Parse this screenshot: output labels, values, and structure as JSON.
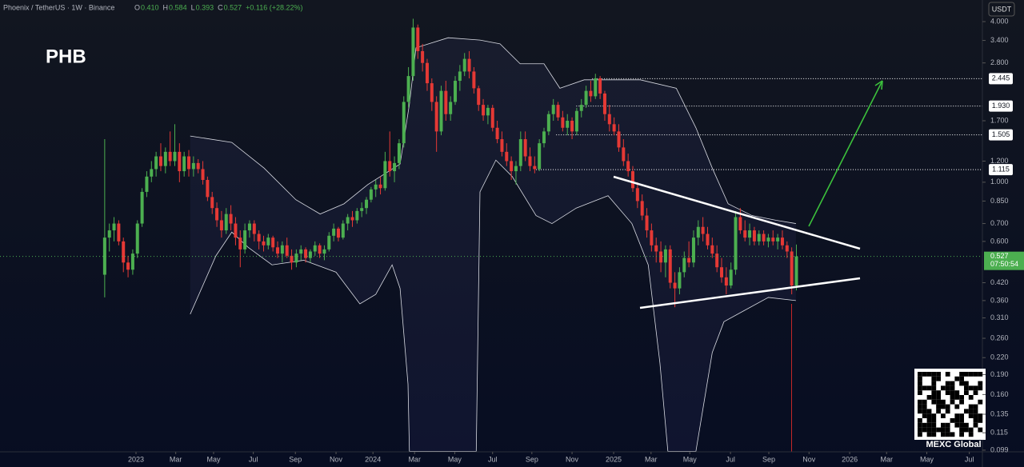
{
  "header": {
    "pair": "Phoenix / TetherUS · 1W · Binance",
    "fields": [
      {
        "key": "O",
        "text": "0.410"
      },
      {
        "key": "H",
        "text": "0.584"
      },
      {
        "key": "L",
        "text": "0.393"
      },
      {
        "key": "C",
        "text": "0.527"
      }
    ],
    "change": "+0.116 (+28.22%)",
    "currency": "USDT",
    "countdown": "07:50:54",
    "watermark": "MEXC Global"
  },
  "chart_data": {
    "type": "candlestick",
    "title": "PHB",
    "log_scale": true,
    "up_color": "#4caf50",
    "down_color": "#e53935",
    "band_color": "#d9dbe3",
    "xlim": [
      -22.4,
      187.8
    ],
    "ylim": [
      0.0976,
      4.82
    ],
    "xticks": [
      {
        "value": 6.7,
        "label": "2023"
      },
      {
        "value": 15.2,
        "label": "Mar"
      },
      {
        "value": 23.3,
        "label": "May"
      },
      {
        "value": 31.8,
        "label": "Jul"
      },
      {
        "value": 40.8,
        "label": "Sep"
      },
      {
        "value": 49.5,
        "label": "Nov"
      },
      {
        "value": 57.4,
        "label": "2024"
      },
      {
        "value": 66.3,
        "label": "Mar"
      },
      {
        "value": 74.9,
        "label": "May"
      },
      {
        "value": 83.0,
        "label": "Jul"
      },
      {
        "value": 91.4,
        "label": "Sep"
      },
      {
        "value": 100.0,
        "label": "Nov"
      },
      {
        "value": 108.9,
        "label": "2025"
      },
      {
        "value": 116.9,
        "label": "Mar"
      },
      {
        "value": 125.2,
        "label": "May"
      },
      {
        "value": 133.9,
        "label": "Jul"
      },
      {
        "value": 142.1,
        "label": "Sep"
      },
      {
        "value": 150.7,
        "label": "Nov"
      },
      {
        "value": 159.4,
        "label": "2026"
      },
      {
        "value": 167.3,
        "label": "Mar"
      },
      {
        "value": 175.9,
        "label": "May"
      },
      {
        "value": 185.0,
        "label": "Jul"
      }
    ],
    "yticks": [
      {
        "value": 4,
        "label": "4.000"
      },
      {
        "value": 3.4,
        "label": "3.400"
      },
      {
        "value": 2.8,
        "label": "2.800"
      },
      {
        "value": 1.7,
        "label": "1.700"
      },
      {
        "value": 1.2,
        "label": "1.200"
      },
      {
        "value": 1,
        "label": "1.000"
      },
      {
        "value": 0.85,
        "label": "0.850"
      },
      {
        "value": 0.7,
        "label": "0.700"
      },
      {
        "value": 0.6,
        "label": "0.600"
      },
      {
        "value": 0.42,
        "label": "0.420"
      },
      {
        "value": 0.36,
        "label": "0.360"
      },
      {
        "value": 0.31,
        "label": "0.310"
      },
      {
        "value": 0.26,
        "label": "0.260"
      },
      {
        "value": 0.22,
        "label": "0.220"
      },
      {
        "value": 0.19,
        "label": "0.190"
      },
      {
        "value": 0.16,
        "label": "0.160"
      },
      {
        "value": 0.135,
        "label": "0.135"
      },
      {
        "value": 0.115,
        "label": "0.115"
      },
      {
        "value": 0.099,
        "label": "0.099"
      }
    ],
    "levels": [
      {
        "value": 2.445,
        "label": "2.445",
        "x_start": 104.3
      },
      {
        "value": 1.93,
        "label": "1.930",
        "x_start": 100.9
      },
      {
        "value": 1.505,
        "label": "1.505",
        "x_start": 96.6
      },
      {
        "value": 1.115,
        "label": "1.115",
        "x_start": 92.3
      }
    ],
    "candles": [
      [
        0.45,
        1.45,
        0.37,
        0.62
      ],
      [
        0.62,
        0.7,
        0.55,
        0.66
      ],
      [
        0.66,
        0.74,
        0.6,
        0.7
      ],
      [
        0.7,
        0.72,
        0.58,
        0.6
      ],
      [
        0.6,
        0.62,
        0.46,
        0.5
      ],
      [
        0.5,
        0.53,
        0.44,
        0.47
      ],
      [
        0.47,
        0.56,
        0.45,
        0.54
      ],
      [
        0.54,
        0.72,
        0.52,
        0.7
      ],
      [
        0.7,
        0.95,
        0.68,
        0.92
      ],
      [
        0.92,
        1.1,
        0.88,
        1.05
      ],
      [
        1.05,
        1.2,
        1.0,
        1.12
      ],
      [
        1.12,
        1.3,
        1.05,
        1.25
      ],
      [
        1.25,
        1.4,
        1.1,
        1.15
      ],
      [
        1.15,
        1.35,
        1.08,
        1.3
      ],
      [
        1.3,
        1.55,
        1.15,
        1.2
      ],
      [
        1.2,
        1.65,
        1.15,
        1.3
      ],
      [
        1.3,
        1.4,
        1.0,
        1.1
      ],
      [
        1.1,
        1.3,
        1.05,
        1.25
      ],
      [
        1.25,
        1.32,
        1.05,
        1.12
      ],
      [
        1.12,
        1.25,
        1.05,
        1.18
      ],
      [
        1.18,
        1.22,
        1.08,
        1.12
      ],
      [
        1.12,
        1.2,
        0.98,
        1.02
      ],
      [
        1.02,
        1.05,
        0.85,
        0.88
      ],
      [
        0.88,
        0.92,
        0.76,
        0.8
      ],
      [
        0.8,
        0.84,
        0.68,
        0.72
      ],
      [
        0.72,
        0.78,
        0.62,
        0.66
      ],
      [
        0.66,
        0.8,
        0.64,
        0.76
      ],
      [
        0.76,
        0.82,
        0.66,
        0.7
      ],
      [
        0.7,
        0.74,
        0.58,
        0.62
      ],
      [
        0.62,
        0.66,
        0.48,
        0.56
      ],
      [
        0.56,
        0.7,
        0.54,
        0.66
      ],
      [
        0.66,
        0.72,
        0.62,
        0.7
      ],
      [
        0.7,
        0.72,
        0.6,
        0.64
      ],
      [
        0.64,
        0.66,
        0.56,
        0.6
      ],
      [
        0.6,
        0.63,
        0.55,
        0.58
      ],
      [
        0.58,
        0.64,
        0.56,
        0.62
      ],
      [
        0.62,
        0.63,
        0.55,
        0.57
      ],
      [
        0.57,
        0.6,
        0.52,
        0.54
      ],
      [
        0.54,
        0.6,
        0.5,
        0.58
      ],
      [
        0.58,
        0.62,
        0.52,
        0.53
      ],
      [
        0.53,
        0.56,
        0.47,
        0.5
      ],
      [
        0.5,
        0.56,
        0.48,
        0.54
      ],
      [
        0.54,
        0.58,
        0.51,
        0.56
      ],
      [
        0.56,
        0.57,
        0.5,
        0.52
      ],
      [
        0.52,
        0.56,
        0.5,
        0.55
      ],
      [
        0.55,
        0.6,
        0.53,
        0.58
      ],
      [
        0.58,
        0.59,
        0.52,
        0.54
      ],
      [
        0.54,
        0.58,
        0.51,
        0.56
      ],
      [
        0.56,
        0.65,
        0.55,
        0.63
      ],
      [
        0.63,
        0.7,
        0.6,
        0.67
      ],
      [
        0.67,
        0.68,
        0.6,
        0.62
      ],
      [
        0.62,
        0.72,
        0.61,
        0.7
      ],
      [
        0.7,
        0.76,
        0.66,
        0.74
      ],
      [
        0.74,
        0.78,
        0.68,
        0.72
      ],
      [
        0.72,
        0.8,
        0.7,
        0.78
      ],
      [
        0.78,
        0.84,
        0.74,
        0.8
      ],
      [
        0.8,
        0.88,
        0.76,
        0.86
      ],
      [
        0.86,
        0.96,
        0.84,
        0.94
      ],
      [
        0.94,
        1.02,
        0.88,
        0.98
      ],
      [
        0.98,
        1.05,
        0.9,
        0.95
      ],
      [
        0.95,
        1.3,
        0.93,
        1.2
      ],
      [
        1.2,
        1.55,
        1.05,
        1.1
      ],
      [
        1.1,
        1.25,
        1.0,
        1.18
      ],
      [
        1.18,
        1.45,
        1.12,
        1.4
      ],
      [
        1.4,
        2.1,
        1.35,
        2.0
      ],
      [
        2.0,
        2.7,
        1.9,
        2.5
      ],
      [
        2.5,
        4.1,
        2.4,
        3.8
      ],
      [
        3.8,
        3.9,
        2.9,
        3.1
      ],
      [
        3.1,
        3.3,
        2.6,
        2.8
      ],
      [
        2.8,
        2.9,
        2.2,
        2.35
      ],
      [
        2.35,
        2.45,
        1.85,
        2.0
      ],
      [
        2.0,
        2.1,
        1.3,
        1.55
      ],
      [
        1.55,
        2.3,
        1.5,
        2.2
      ],
      [
        2.2,
        2.4,
        1.7,
        1.8
      ],
      [
        1.8,
        2.1,
        1.7,
        2.0
      ],
      [
        2.0,
        2.5,
        1.95,
        2.4
      ],
      [
        2.4,
        2.75,
        2.2,
        2.6
      ],
      [
        2.6,
        3.05,
        2.5,
        2.9
      ],
      [
        2.9,
        3.1,
        2.45,
        2.6
      ],
      [
        2.6,
        2.7,
        2.15,
        2.25
      ],
      [
        2.25,
        2.3,
        1.85,
        1.95
      ],
      [
        1.95,
        2.05,
        1.7,
        1.78
      ],
      [
        1.78,
        1.95,
        1.65,
        1.9
      ],
      [
        1.9,
        1.95,
        1.55,
        1.6
      ],
      [
        1.6,
        1.7,
        1.4,
        1.45
      ],
      [
        1.45,
        1.55,
        1.25,
        1.3
      ],
      [
        1.3,
        1.4,
        1.15,
        1.2
      ],
      [
        1.2,
        1.25,
        1.02,
        1.1
      ],
      [
        1.1,
        1.2,
        0.98,
        1.15
      ],
      [
        1.15,
        1.55,
        1.1,
        1.45
      ],
      [
        1.45,
        1.55,
        1.2,
        1.25
      ],
      [
        1.25,
        1.35,
        1.1,
        1.15
      ],
      [
        1.15,
        1.25,
        1.08,
        1.12
      ],
      [
        1.12,
        1.45,
        1.1,
        1.4
      ],
      [
        1.4,
        1.6,
        1.35,
        1.55
      ],
      [
        1.55,
        1.85,
        1.5,
        1.8
      ],
      [
        1.8,
        2.05,
        1.7,
        1.95
      ],
      [
        1.95,
        2.0,
        1.7,
        1.75
      ],
      [
        1.75,
        1.85,
        1.55,
        1.6
      ],
      [
        1.6,
        1.8,
        1.5,
        1.7
      ],
      [
        1.7,
        1.75,
        1.45,
        1.55
      ],
      [
        1.55,
        1.9,
        1.5,
        1.85
      ],
      [
        1.85,
        2.05,
        1.75,
        1.95
      ],
      [
        1.95,
        2.3,
        1.9,
        2.2
      ],
      [
        2.2,
        2.4,
        2.0,
        2.1
      ],
      [
        2.1,
        2.55,
        2.05,
        2.45
      ],
      [
        2.45,
        2.5,
        2.05,
        2.15
      ],
      [
        2.15,
        2.2,
        1.7,
        1.8
      ],
      [
        1.8,
        1.95,
        1.55,
        1.65
      ],
      [
        1.65,
        1.75,
        1.5,
        1.55
      ],
      [
        1.55,
        1.65,
        1.3,
        1.35
      ],
      [
        1.35,
        1.45,
        1.15,
        1.2
      ],
      [
        1.2,
        1.28,
        1.05,
        1.1
      ],
      [
        1.1,
        1.15,
        0.92,
        0.95
      ],
      [
        0.95,
        1.0,
        0.8,
        0.85
      ],
      [
        0.85,
        0.9,
        0.72,
        0.75
      ],
      [
        0.75,
        0.8,
        0.62,
        0.66
      ],
      [
        0.66,
        0.7,
        0.55,
        0.58
      ],
      [
        0.58,
        0.62,
        0.5,
        0.55
      ],
      [
        0.55,
        0.6,
        0.46,
        0.5
      ],
      [
        0.5,
        0.58,
        0.44,
        0.56
      ],
      [
        0.56,
        0.58,
        0.4,
        0.42
      ],
      [
        0.42,
        0.46,
        0.34,
        0.4
      ],
      [
        0.4,
        0.48,
        0.38,
        0.46
      ],
      [
        0.46,
        0.55,
        0.44,
        0.52
      ],
      [
        0.52,
        0.6,
        0.48,
        0.5
      ],
      [
        0.5,
        0.66,
        0.48,
        0.62
      ],
      [
        0.62,
        0.72,
        0.58,
        0.68
      ],
      [
        0.68,
        0.74,
        0.6,
        0.64
      ],
      [
        0.64,
        0.68,
        0.56,
        0.58
      ],
      [
        0.58,
        0.62,
        0.52,
        0.54
      ],
      [
        0.54,
        0.58,
        0.46,
        0.48
      ],
      [
        0.48,
        0.52,
        0.42,
        0.44
      ],
      [
        0.44,
        0.48,
        0.38,
        0.41
      ],
      [
        0.41,
        0.5,
        0.4,
        0.47
      ],
      [
        0.47,
        0.78,
        0.45,
        0.74
      ],
      [
        0.74,
        0.8,
        0.64,
        0.66
      ],
      [
        0.66,
        0.72,
        0.6,
        0.62
      ],
      [
        0.62,
        0.7,
        0.58,
        0.66
      ],
      [
        0.66,
        0.68,
        0.58,
        0.6
      ],
      [
        0.6,
        0.66,
        0.58,
        0.64
      ],
      [
        0.64,
        0.66,
        0.58,
        0.6
      ],
      [
        0.6,
        0.64,
        0.57,
        0.62
      ],
      [
        0.62,
        0.66,
        0.58,
        0.6
      ],
      [
        0.6,
        0.64,
        0.56,
        0.62
      ],
      [
        0.62,
        0.66,
        0.56,
        0.58
      ],
      [
        0.58,
        0.6,
        0.52,
        0.55
      ],
      [
        0.55,
        0.57,
        0.38,
        0.41
      ],
      [
        0.41,
        0.584,
        0.393,
        0.527
      ]
    ],
    "bands": {
      "upper": {
        "x": [
          18.3,
          27.2,
          34.1,
          40.9,
          46.1,
          51.2,
          56.3,
          63.2,
          65.2,
          66.6,
          73.5,
          80.3,
          84.6,
          88.9,
          94.0,
          97.4,
          102.6,
          114.6,
          122.3,
          126.5,
          130.0,
          133.4,
          138.5,
          143.7,
          147.9
        ],
        "values": [
          1.49,
          1.41,
          1.13,
          0.86,
          0.76,
          0.83,
          0.98,
          1.17,
          1.96,
          3.19,
          3.48,
          3.41,
          3.3,
          2.78,
          2.78,
          2.25,
          2.42,
          2.42,
          2.25,
          1.6,
          1.13,
          0.83,
          0.75,
          0.72,
          0.7
        ]
      },
      "lower": {
        "x": [
          18.3,
          23.8,
          27.2,
          30.7,
          35.8,
          42.6,
          49.5,
          54.6,
          58.0,
          61.5,
          63.2,
          64.9,
          65.2,
          79.5,
          80.3,
          83.7,
          87.2,
          92.3,
          95.7,
          100.9,
          107.7,
          112.8,
          116.3,
          118.8,
          120.5,
          126.5,
          130.0,
          132.5,
          136.8,
          142.0,
          147.9
        ],
        "values": [
          0.32,
          0.53,
          0.65,
          0.57,
          0.49,
          0.51,
          0.46,
          0.35,
          0.38,
          0.49,
          0.4,
          0.175,
          0.098,
          0.098,
          0.92,
          1.21,
          1.05,
          0.75,
          0.7,
          0.8,
          0.89,
          0.7,
          0.49,
          0.21,
          0.098,
          0.098,
          0.23,
          0.3,
          0.33,
          0.37,
          0.36
        ]
      }
    }
  }
}
